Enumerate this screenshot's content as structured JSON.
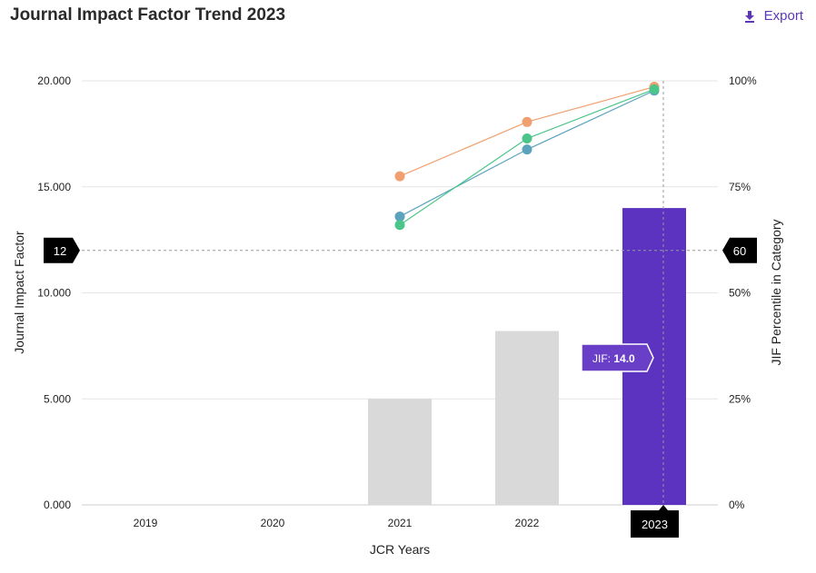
{
  "header": {
    "title": "Journal Impact Factor Trend 2023",
    "export_label": "Export",
    "export_icon": "download-icon"
  },
  "chart_data": {
    "type": "bar",
    "categories": [
      "2019",
      "2020",
      "2021",
      "2022",
      "2023"
    ],
    "xlabel": "JCR Years",
    "ylabel": "Journal Impact Factor",
    "y2label": "JIF Percentile in Category",
    "ylim": [
      0,
      20
    ],
    "y2lim": [
      0,
      100
    ],
    "yticks": [
      "0.000",
      "5.000",
      "10.000",
      "15.000",
      "20.000"
    ],
    "y2ticks": [
      "0%",
      "25%",
      "50%",
      "75%",
      "100%"
    ],
    "grid": true,
    "bars": {
      "values": [
        null,
        null,
        5.0,
        8.2,
        14.0
      ],
      "colors": [
        "#d9d9d9",
        "#d9d9d9",
        "#d9d9d9",
        "#d9d9d9",
        "#5b33c0"
      ]
    },
    "series": [
      {
        "color": "#f0a070",
        "values": [
          null,
          null,
          77.5,
          90.3,
          98.6
        ]
      },
      {
        "color": "#5ba3bd",
        "values": [
          null,
          null,
          68.0,
          83.8,
          97.7
        ]
      },
      {
        "color": "#4cc58a",
        "values": [
          null,
          null,
          66.0,
          86.4,
          98.0
        ]
      }
    ],
    "crosshair": {
      "y_label": "12",
      "y2_label": "60",
      "x_label": "2023",
      "y_value": 12,
      "x_category": "2023"
    },
    "tooltip": {
      "label": "JIF:",
      "value": "14.0"
    }
  }
}
